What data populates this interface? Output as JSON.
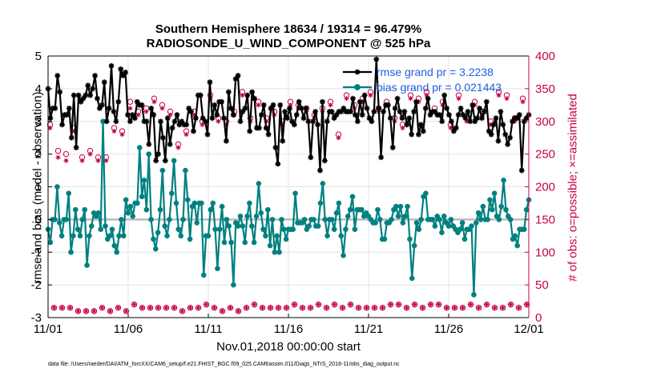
{
  "chart_data": {
    "type": "line",
    "title": "Southern Hemisphere 18634 / 19314 = 96.479%",
    "subtitle": "RADIOSONDE_U_WIND_COMPONENT @ 525 hPa",
    "xlabel": "Nov.01,2018 00:00:00 start",
    "ylabel_left": "rmse and bias (model - observation)",
    "ylabel_right": "# of obs: o=possible; ×=assimilated",
    "footer": "data file: /Users/raeder/DAI/ATM_forcXX/CAM6_setup/f.e21.FHIST_BGC.f09_025.CAM6assim.011/Diags_NTrS_2018-11/obs_diag_output.nc",
    "x_ticks": [
      "11/01",
      "11/06",
      "11/11",
      "11/16",
      "11/21",
      "11/26",
      "12/01"
    ],
    "y_left_ticks": [
      "-3",
      "-2",
      "-1",
      "0",
      "1",
      "2",
      "3",
      "4",
      "5"
    ],
    "y_right_ticks": [
      "0",
      "50",
      "100",
      "150",
      "200",
      "250",
      "300",
      "350",
      "400"
    ],
    "xlim": [
      0,
      30
    ],
    "ylim_left": [
      -3,
      5
    ],
    "ylim_right": [
      0,
      400
    ],
    "grid": true,
    "legend_position": "top-right",
    "zero_line": true,
    "series": [
      {
        "name": "rmse grand pr = 3.2238",
        "color": "#000000",
        "marker": "asterisk",
        "axis": "left",
        "values": [
          4.0,
          3.1,
          3.4,
          3.4,
          4.4,
          3.9,
          2.9,
          3.2,
          3.2,
          3.4,
          2.5,
          3.8,
          2.2,
          3.8,
          3.6,
          3.7,
          3.8,
          4.1,
          3.8,
          4.0,
          4.4,
          3.7,
          3.4,
          3.5,
          4.2,
          3.0,
          3.4,
          4.7,
          3.3,
          3.0,
          3.6,
          4.6,
          4.4,
          4.5,
          3.2,
          3.0,
          3.2,
          3.1,
          3.6,
          3.5,
          3.5,
          3.0,
          3.0,
          2.3,
          3.4,
          3.2,
          1.8,
          2.0,
          3.0,
          2.5,
          1.8,
          3.1,
          2.3,
          2.8,
          3.0,
          3.2,
          2.9,
          3.0,
          2.9,
          2.9,
          3.4,
          3.3,
          2.7,
          3.1,
          3.8,
          3.8,
          3.1,
          3.0,
          2.6,
          4.2,
          3.1,
          3.5,
          3.2,
          3.6,
          3.6,
          3.1,
          2.4,
          3.9,
          3.4,
          3.2,
          4.3,
          4.4,
          3.0,
          3.3,
          3.4,
          3.8,
          2.7,
          3.9,
          3.7,
          2.8,
          2.8,
          3.2,
          3.5,
          2.8,
          2.6,
          3.4,
          3.5,
          2.2,
          1.7,
          3.5,
          2.4,
          3.3,
          3.1,
          3.4,
          3.0,
          2.9,
          3.2,
          3.6,
          3.4,
          3.1,
          3.4,
          3.0,
          1.9,
          3.0,
          3.3,
          2.9,
          1.5,
          3.6,
          1.8,
          3.0,
          3.3,
          3.3,
          3.1,
          3.2,
          3.3,
          3.3,
          3.4,
          3.3,
          3.3,
          3.3,
          3.7,
          3.2,
          3.0,
          3.6,
          3.2,
          3.8,
          3.4,
          3.1,
          3.0,
          3.3,
          4.9,
          3.4,
          1.9,
          3.3,
          3.5,
          3.5,
          3.1,
          2.2,
          3.4,
          3.7,
          3.3,
          3.1,
          3.3,
          2.9,
          3.1,
          2.6,
          3.3,
          3.6,
          2.6,
          2.9,
          2.7,
          3.4,
          3.7,
          3.2,
          3.3,
          3.3,
          3.2,
          3.2,
          3.0,
          3.8,
          3.4,
          3.2,
          3.0,
          2.7,
          2.8,
          3.2,
          3.4,
          3.2,
          3.1,
          3.3,
          3.0,
          3.5,
          3.0,
          3.1,
          3.4,
          3.1,
          3.3,
          3.6,
          2.7,
          2.6,
          2.9,
          3.1,
          2.4,
          3.3,
          2.9,
          2.6,
          2.3,
          2.5,
          3.0,
          3.1,
          3.1,
          3.2,
          1.5,
          3.0,
          3.1,
          3.2
        ]
      },
      {
        "name": "bias grand pr = 0.021443",
        "color": "#008080",
        "marker": "circle",
        "axis": "left",
        "values": [
          -0.3,
          -0.7,
          0.0,
          0.0,
          1.0,
          -0.1,
          -0.5,
          0.0,
          0.0,
          0.8,
          -1.0,
          -0.5,
          0.3,
          -0.3,
          -0.5,
          0.0,
          0.3,
          -1.4,
          -0.5,
          -0.2,
          0.2,
          0.1,
          0.2,
          -0.3,
          3.0,
          -0.2,
          -0.6,
          -0.5,
          -0.3,
          -0.8,
          -1.0,
          -0.5,
          0.0,
          -0.5,
          0.6,
          0.2,
          0.4,
          0.1,
          0.5,
          0.5,
          2.2,
          0.7,
          1.2,
          0.3,
          2.0,
          0.0,
          -0.6,
          -0.9,
          -0.4,
          0.3,
          1.5,
          -0.2,
          -0.5,
          0.0,
          0.8,
          1.8,
          0.5,
          -0.3,
          -0.5,
          0.0,
          1.5,
          0.6,
          -0.6,
          0.4,
          0.5,
          -0.1,
          0.5,
          0.5,
          -1.7,
          -0.5,
          -0.5,
          0.3,
          0.5,
          -0.3,
          -1.5,
          -0.3,
          0.4,
          -0.7,
          0.0,
          -0.2,
          -0.7,
          -2.0,
          -0.1,
          -0.2,
          0.1,
          -0.2,
          -0.7,
          0.1,
          0.5,
          -0.2,
          -0.7,
          0.1,
          1.1,
          0.2,
          -0.3,
          -0.5,
          0.3,
          -0.8,
          0.0,
          -1.0,
          -0.5,
          -1.0,
          0.0,
          -0.3,
          -0.6,
          -0.3,
          -0.3,
          -0.3,
          0.8,
          -0.1,
          -0.1,
          -0.1,
          0.0,
          -0.3,
          -0.2,
          0.0,
          0.0,
          -0.2,
          -0.2,
          0.5,
          1.1,
          0.0,
          -0.5,
          0.0,
          0.0,
          -0.3,
          0.2,
          0.5,
          -0.5,
          -1.1,
          -0.3,
          0.1,
          0.3,
          0.7,
          -0.3,
          0.3,
          0.3,
          0.3,
          0.1,
          0.2,
          0.1,
          0.0,
          -0.1,
          -0.1,
          0.3,
          0.0,
          -0.6,
          -0.6,
          -0.1,
          -0.1,
          0.0,
          0.3,
          0.4,
          0.1,
          0.4,
          -0.1,
          0.1,
          0.4,
          -0.6,
          -1.8,
          -0.8,
          -0.1,
          -0.3,
          0.0,
          0.7,
          0.8,
          0.0,
          0.0,
          0.0,
          -0.2,
          0.1,
          0.0,
          -0.4,
          0.1,
          -0.1,
          -0.2,
          0.0,
          -0.2,
          -0.3,
          -0.4,
          -0.3,
          -0.1,
          -0.6,
          -0.3,
          -0.3,
          -0.2,
          -2.3,
          -0.1,
          0.2,
          0.0,
          0.4,
          0.0,
          0.0,
          0.6,
          0.3,
          0.8,
          0.1,
          0.0,
          0.4,
          1.2,
          0.3,
          0.1,
          0.0,
          -0.6,
          -0.5,
          -0.8,
          -0.3,
          -0.3,
          -0.3,
          0.3,
          0.6
        ]
      },
      {
        "name": "# of obs possible",
        "color": "#c8004a",
        "marker": "open-circle",
        "axis": "right",
        "values": [
          295,
          15,
          255,
          15,
          250,
          15,
          290,
          10,
          245,
          10,
          255,
          10,
          245,
          15,
          245,
          10,
          290,
          15,
          285,
          10,
          330,
          20,
          315,
          15,
          320,
          15,
          335,
          15,
          325,
          15,
          315,
          15,
          265,
          10,
          285,
          15,
          315,
          15,
          300,
          20,
          340,
          15,
          305,
          10,
          300,
          15,
          315,
          10,
          345,
          15,
          305,
          20,
          330,
          15,
          305,
          15,
          315,
          15,
          300,
          15,
          330,
          20,
          325,
          15,
          320,
          15,
          310,
          20,
          320,
          15,
          330,
          20,
          280,
          15,
          340,
          20,
          325,
          15,
          335,
          15,
          345,
          15,
          320,
          15,
          330,
          20,
          305,
          20,
          295,
          15,
          340,
          20,
          335,
          15,
          345,
          20,
          320,
          20,
          330,
          15,
          295,
          15,
          340,
          15,
          305,
          20,
          330,
          15,
          315,
          20,
          300,
          15,
          345,
          15,
          340,
          20,
          305,
          15,
          335,
          20
        ]
      },
      {
        "name": "# of obs assimilated",
        "color": "#c8004a",
        "marker": "asterisk",
        "axis": "right",
        "values": [
          290,
          15,
          245,
          15,
          240,
          15,
          285,
          10,
          240,
          10,
          250,
          10,
          240,
          15,
          240,
          10,
          285,
          15,
          280,
          10,
          320,
          20,
          310,
          15,
          315,
          15,
          330,
          15,
          320,
          15,
          310,
          15,
          260,
          10,
          280,
          15,
          310,
          15,
          295,
          20,
          335,
          15,
          300,
          10,
          295,
          15,
          310,
          10,
          340,
          15,
          300,
          20,
          325,
          15,
          300,
          15,
          310,
          15,
          295,
          15,
          325,
          20,
          320,
          15,
          315,
          15,
          305,
          20,
          315,
          15,
          325,
          20,
          275,
          15,
          335,
          20,
          320,
          15,
          330,
          15,
          340,
          15,
          315,
          15,
          325,
          20,
          300,
          20,
          290,
          15,
          335,
          20,
          330,
          15,
          340,
          20,
          315,
          20,
          325,
          15,
          290,
          15,
          335,
          15,
          300,
          20,
          325,
          15,
          310,
          20,
          295,
          15,
          340,
          15,
          335,
          20,
          300,
          15,
          330,
          20
        ]
      }
    ]
  }
}
